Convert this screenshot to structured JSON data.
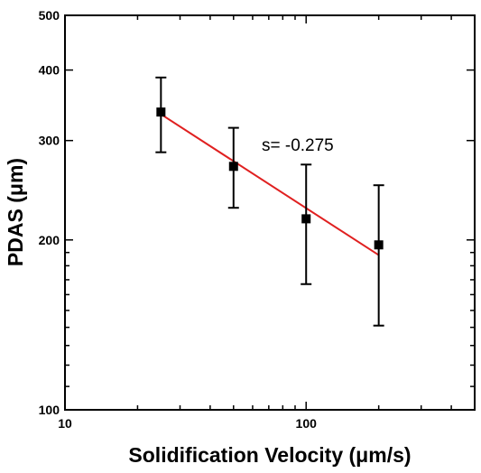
{
  "chart_data": {
    "type": "scatter",
    "title": "",
    "xlabel": "Solidification Velocity (μm/s)",
    "ylabel": "PDAS (μm)",
    "xscale": "log",
    "yscale": "log",
    "xlim": [
      10,
      500
    ],
    "ylim": [
      100,
      500
    ],
    "grid": false,
    "legend": "none",
    "x_tick_labels": [
      "10",
      "100"
    ],
    "y_tick_labels": [
      "100",
      "200",
      "300",
      "400",
      "500"
    ],
    "points": [
      {
        "x": 25,
        "y": 337,
        "err_low": 286,
        "err_high": 388
      },
      {
        "x": 50,
        "y": 270,
        "err_low": 228,
        "err_high": 316
      },
      {
        "x": 100,
        "y": 218,
        "err_low": 167,
        "err_high": 272
      },
      {
        "x": 200,
        "y": 196,
        "err_low": 141,
        "err_high": 250
      }
    ],
    "fit_line": {
      "x": [
        25,
        200
      ],
      "y": [
        334,
        188
      ],
      "slope": -0.275,
      "color": "#e02020"
    },
    "annotation": "s= -0.275",
    "marker_color": "#000000"
  }
}
